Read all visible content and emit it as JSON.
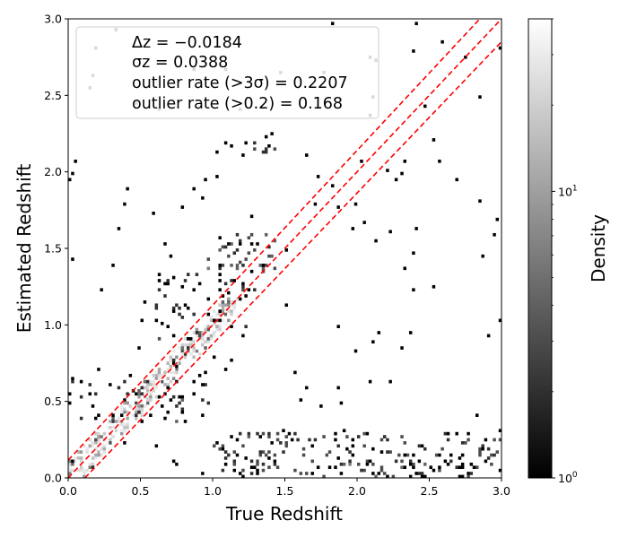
{
  "chart_data": {
    "type": "heatmap",
    "xlabel": "True Redshift",
    "ylabel": "Estimated Redshift",
    "xlim": [
      0.0,
      3.0
    ],
    "ylim": [
      0.0,
      3.0
    ],
    "x_ticks": [
      "0.0",
      "0.5",
      "1.0",
      "1.5",
      "2.0",
      "2.5",
      "3.0"
    ],
    "y_ticks": [
      "0.0",
      "0.5",
      "1.0",
      "1.5",
      "2.0",
      "2.5",
      "3.0"
    ],
    "grid": false,
    "legend_placement": "top-left",
    "legend": [
      "Δz = −0.0184",
      "σz = 0.0388",
      "outlier rate (>3σ) = 0.2207",
      "outlier rate (>0.2) = 0.168"
    ],
    "colorbar": {
      "label": "Density",
      "scale": "log",
      "range": [
        1,
        40
      ],
      "tick_labels": [
        {
          "base": "10",
          "exp": "0",
          "value": 1
        },
        {
          "base": "10",
          "exp": "1",
          "value": 10
        }
      ],
      "colormap": "gray"
    },
    "lines": [
      {
        "name": "one-to-one",
        "color": "#ff0000",
        "style": "dashed",
        "points": [
          [
            0.0,
            0.0
          ],
          [
            3.0,
            3.0
          ]
        ]
      },
      {
        "name": "upper-bound",
        "color": "#ff0000",
        "style": "dashed",
        "points": [
          [
            0.0,
            0.116
          ],
          [
            2.85,
            3.0
          ]
        ]
      },
      {
        "name": "lower-bound",
        "color": "#ff0000",
        "style": "dashed",
        "points": [
          [
            0.116,
            0.0
          ],
          [
            3.0,
            2.85
          ]
        ]
      }
    ],
    "density_clusters": [
      {
        "x": [
          0.05,
          1.15
        ],
        "y": [
          0.05,
          1.15
        ],
        "along": "diagonal",
        "spread": 0.05,
        "count": 720,
        "max": 30
      },
      {
        "x": [
          0.0,
          1.0
        ],
        "y": [
          0.35,
          0.65
        ],
        "count": 55,
        "max": 2
      },
      {
        "x": [
          1.0,
          3.0
        ],
        "y": [
          0.0,
          0.3
        ],
        "count": 190,
        "max": 3
      },
      {
        "x": [
          0.95,
          1.45
        ],
        "y": [
          1.35,
          1.6
        ],
        "count": 40,
        "max": 4
      },
      {
        "x": [
          1.2,
          1.45
        ],
        "y": [
          2.1,
          2.25
        ],
        "count": 12,
        "max": 2
      },
      {
        "x": [
          0.0,
          3.0
        ],
        "y": [
          0.0,
          3.0
        ],
        "count": 140,
        "max": 1
      },
      {
        "x": [
          0.6,
          1.3
        ],
        "y": [
          0.9,
          1.35
        ],
        "count": 60,
        "max": 2
      }
    ]
  }
}
